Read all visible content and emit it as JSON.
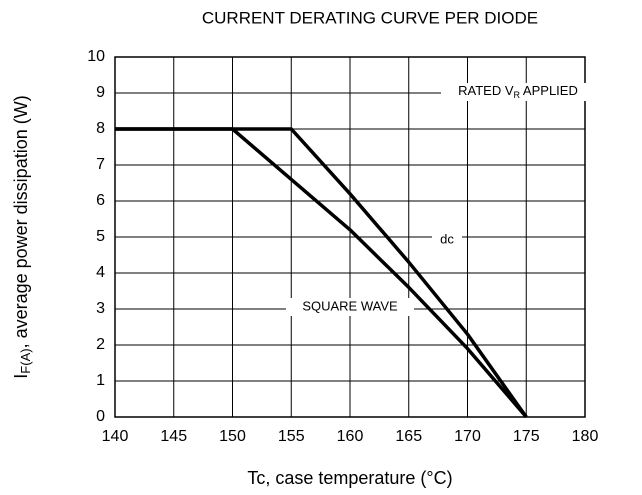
{
  "chart_data": {
    "type": "line",
    "title": "CURRENT DERATING CURVE PER DIODE",
    "xlabel": "Tc, case temperature (°C)",
    "ylabel": {
      "main": "I",
      "sub": "F(A)",
      "rest": ", average power dissipation (W)"
    },
    "xlim": [
      140,
      180
    ],
    "xticks": [
      140,
      145,
      150,
      155,
      160,
      165,
      170,
      175,
      180
    ],
    "ylim": [
      0,
      10
    ],
    "yticks": [
      0,
      1,
      2,
      3,
      4,
      5,
      6,
      7,
      8,
      9,
      10
    ],
    "grid": true,
    "series": [
      {
        "name": "dc",
        "color": "#000000",
        "x": [
          140,
          155,
          160,
          165,
          170,
          175
        ],
        "values": [
          8,
          8,
          6.2,
          4.3,
          2.3,
          0
        ]
      },
      {
        "name": "SQUARE WAVE",
        "color": "#000000",
        "x": [
          140,
          150,
          160,
          165,
          170,
          175
        ],
        "values": [
          8,
          8,
          5.2,
          3.6,
          1.9,
          0
        ]
      }
    ],
    "annotations": [
      {
        "text": "RATED V",
        "sub": "R",
        "rest": " APPLIED"
      }
    ]
  }
}
